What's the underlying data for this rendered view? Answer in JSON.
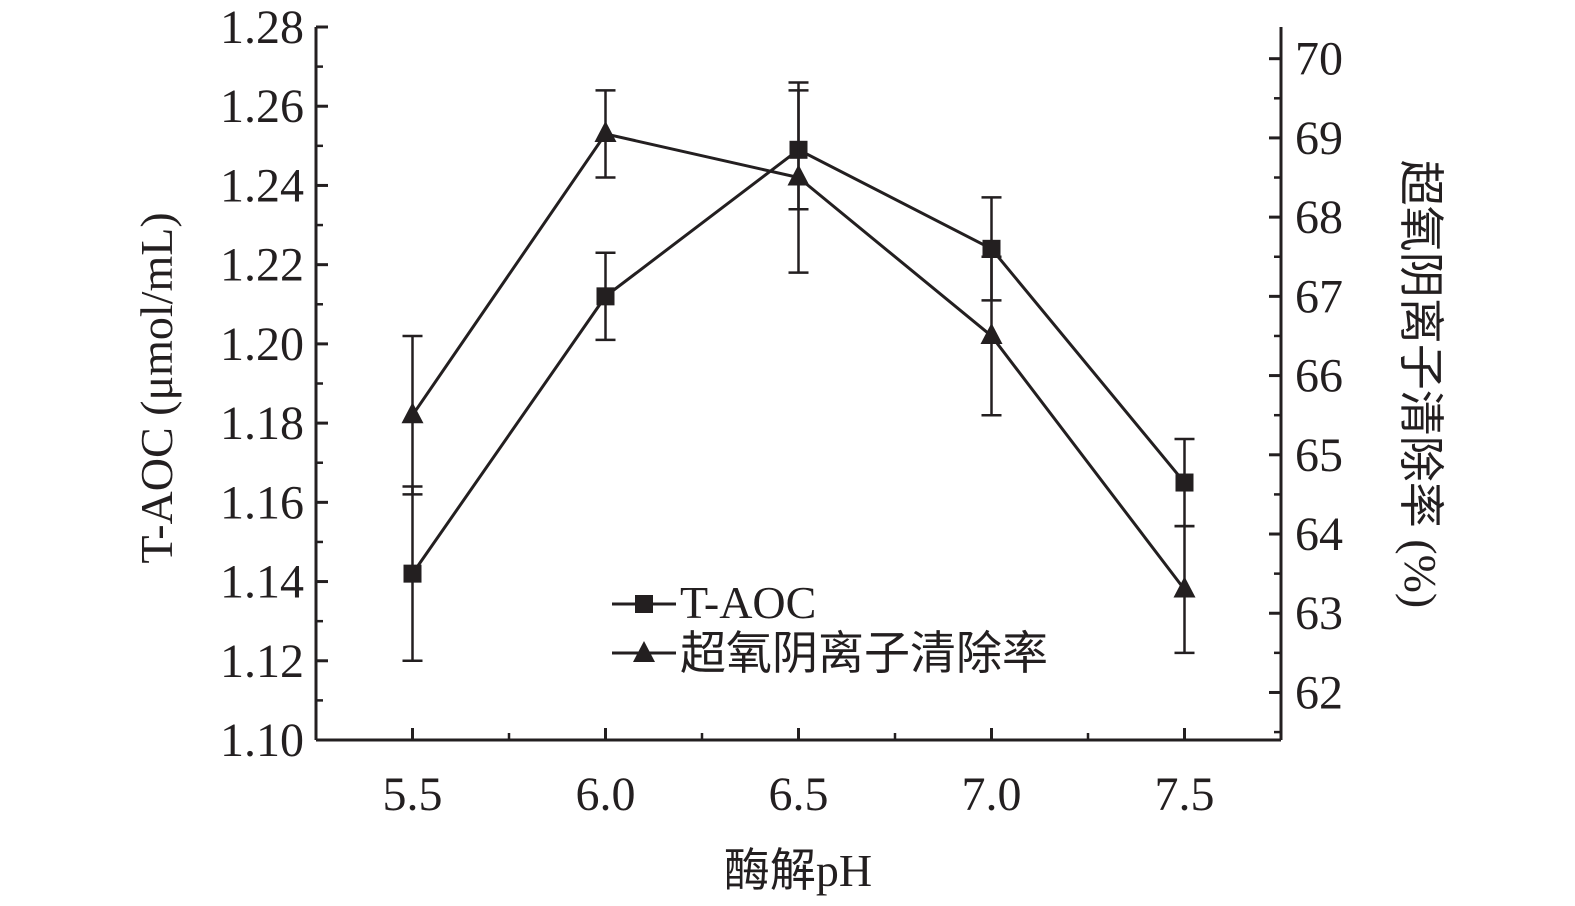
{
  "chart_data": {
    "type": "line",
    "x": [
      5.5,
      6.0,
      6.5,
      7.0,
      7.5
    ],
    "x_tick_labels": [
      "5.5",
      "6.0",
      "6.5",
      "7.0",
      "7.5"
    ],
    "xlabel": "酶解pH",
    "xlim": [
      5.25,
      7.75
    ],
    "y_left": {
      "label": "T-AOC (μmol/mL)",
      "lim": [
        1.1,
        1.28
      ],
      "ticks": [
        "1.10",
        "1.12",
        "1.14",
        "1.16",
        "1.18",
        "1.20",
        "1.22",
        "1.24",
        "1.26",
        "1.28"
      ]
    },
    "y_right": {
      "label": "超氧阴离子清除率 (%)",
      "lim": [
        61.4,
        70.4
      ],
      "ticks": [
        "62",
        "63",
        "64",
        "65",
        "66",
        "67",
        "68",
        "69",
        "70"
      ]
    },
    "series": [
      {
        "name": "T-AOC",
        "axis": "left",
        "marker": "square",
        "values": [
          1.142,
          1.212,
          1.249,
          1.224,
          1.165
        ],
        "errors": [
          0.022,
          0.011,
          0.015,
          0.013,
          0.011
        ]
      },
      {
        "name": "超氧阴离子清除率",
        "axis": "right",
        "marker": "triangle",
        "values": [
          65.5,
          69.05,
          68.5,
          66.5,
          63.3
        ],
        "errors": [
          1.0,
          0.55,
          1.2,
          1.0,
          0.8
        ]
      }
    ],
    "legend_position": "bottom-center",
    "grid": false,
    "color": "#231f20"
  }
}
